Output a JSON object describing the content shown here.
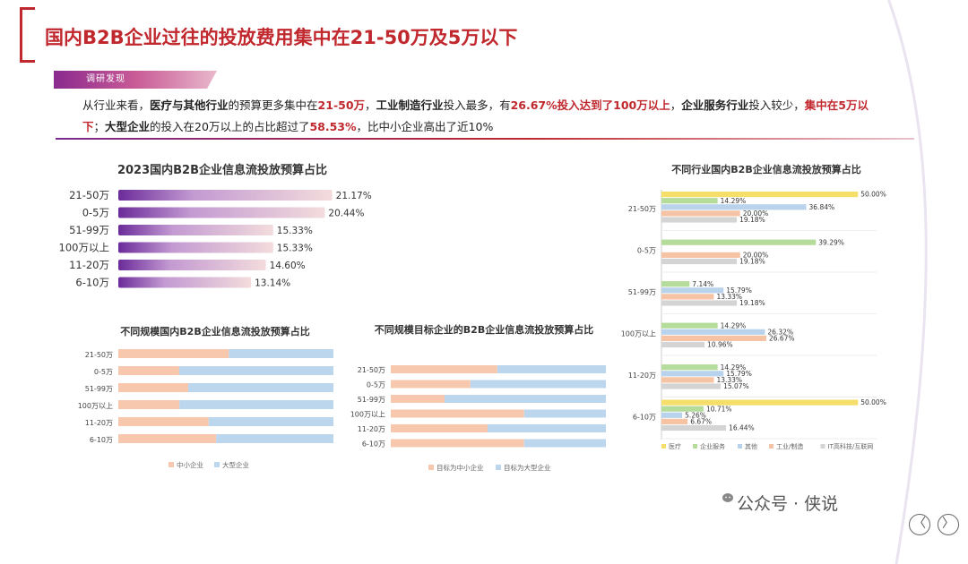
{
  "header": {
    "title": "国内B2B企业过往的投放费用集中在21-50万及5万以下",
    "section_tag": "调研发现"
  },
  "summary": {
    "segments": [
      {
        "text": "从行业来看，",
        "style": "n"
      },
      {
        "text": "医疗与其他行业",
        "style": "b"
      },
      {
        "text": "的预算更多集中在",
        "style": "n"
      },
      {
        "text": "21-50万",
        "style": "r"
      },
      {
        "text": "，",
        "style": "n"
      },
      {
        "text": "工业制造行业",
        "style": "b"
      },
      {
        "text": "投入最多，有",
        "style": "n"
      },
      {
        "text": "26.67%投入达到了100万以上",
        "style": "r"
      },
      {
        "text": "，",
        "style": "n"
      },
      {
        "text": "企业服务行业",
        "style": "b"
      },
      {
        "text": "投入较少，",
        "style": "n"
      },
      {
        "text": "集中在5万以下",
        "style": "r"
      },
      {
        "text": "；",
        "style": "n"
      },
      {
        "text": "大型企业",
        "style": "b"
      },
      {
        "text": "的投入在20万以上的占比超过了",
        "style": "n"
      },
      {
        "text": "58.53%",
        "style": "r"
      },
      {
        "text": "，比中小企业高出了近10%",
        "style": "n"
      }
    ]
  },
  "watermark": {
    "text": "公众号 · 侠说"
  },
  "nav": {
    "prev": "〈",
    "next": "〉"
  },
  "colors": {
    "accent": "#c0282e",
    "purple": "#7a2a8e"
  },
  "chart_data": [
    {
      "id": "overall",
      "type": "bar",
      "orientation": "horizontal",
      "title": "2023国内B2B企业信息流投放预算占比",
      "categories": [
        "21-50万",
        "0-5万",
        "51-99万",
        "100万以上",
        "11-20万",
        "6-10万"
      ],
      "values": [
        21.17,
        20.44,
        15.33,
        15.33,
        14.6,
        13.14
      ],
      "labels": [
        "21.17%",
        "20.44%",
        "15.33%",
        "15.33%",
        "14.60%",
        "13.14%"
      ],
      "xlim": [
        0,
        22
      ]
    },
    {
      "id": "by-size",
      "type": "bar",
      "orientation": "horizontal",
      "stacked": true,
      "title": "不同规模国内B2B企业信息流投放预算占比",
      "categories": [
        "21-50万",
        "0-5万",
        "51-99万",
        "100万以上",
        "11-20万",
        "6-10万"
      ],
      "series": [
        {
          "name": "中小企业",
          "values": [
            51.4,
            28.3,
            32.5,
            28.4,
            42.0,
            45.5
          ]
        },
        {
          "name": "大型企业",
          "values": [
            48.6,
            71.7,
            67.5,
            71.6,
            58.0,
            54.5
          ]
        }
      ],
      "legend_position": "bottom"
    },
    {
      "id": "by-target",
      "type": "bar",
      "orientation": "horizontal",
      "stacked": true,
      "title": "不同规模目标企业的B2B企业信息流投放预算占比",
      "categories": [
        "21-50万",
        "0-5万",
        "51-99万",
        "100万以上",
        "11-20万",
        "6-10万"
      ],
      "series": [
        {
          "name": "目标为中小企业",
          "values": [
            49.5,
            37.0,
            25.0,
            62.0,
            45.0,
            62.0
          ]
        },
        {
          "name": "目标为大型企业",
          "values": [
            50.5,
            63.0,
            75.0,
            38.0,
            55.0,
            38.0
          ]
        }
      ],
      "legend_position": "bottom"
    },
    {
      "id": "by-industry",
      "type": "bar",
      "orientation": "horizontal",
      "title": "不同行业国内B2B企业信息流投放预算占比",
      "categories": [
        "21-50万",
        "0-5万",
        "51-99万",
        "100万以上",
        "11-20万",
        "6-10万"
      ],
      "series": [
        {
          "name": "医疗",
          "color": "#f5de6a",
          "values": [
            50.0,
            null,
            null,
            null,
            null,
            50.0
          ],
          "labels": [
            "50.00%",
            "",
            "",
            "",
            "",
            "50.00%"
          ]
        },
        {
          "name": "企业服务",
          "color": "#b5dc9a",
          "values": [
            14.29,
            39.29,
            7.14,
            14.29,
            14.29,
            10.71
          ],
          "labels": [
            "14.29%",
            "39.29%",
            "7.14%",
            "14.29%",
            "14.29%",
            "10.71%"
          ]
        },
        {
          "name": "其他",
          "color": "#b9d3ec",
          "values": [
            36.84,
            null,
            15.79,
            26.32,
            15.79,
            5.26
          ],
          "labels": [
            "36.84%",
            "",
            "15.79%",
            "26.32%",
            "15.79%",
            "5.26%"
          ]
        },
        {
          "name": "工业/制造",
          "color": "#f6c3a4",
          "values": [
            20.0,
            20.0,
            13.33,
            26.67,
            13.33,
            6.67
          ],
          "labels": [
            "20.00%",
            "20.00%",
            "13.33%",
            "26.67%",
            "13.33%",
            "6.67%"
          ]
        },
        {
          "name": "IT高科技/互联网",
          "color": "#d4d4d4",
          "values": [
            19.18,
            19.18,
            19.18,
            10.96,
            15.07,
            16.44
          ],
          "labels": [
            "19.18%",
            "19.18%",
            "19.18%",
            "10.96%",
            "15.07%",
            "16.44%"
          ]
        }
      ],
      "xlim": [
        0,
        52
      ],
      "legend_position": "bottom"
    }
  ]
}
